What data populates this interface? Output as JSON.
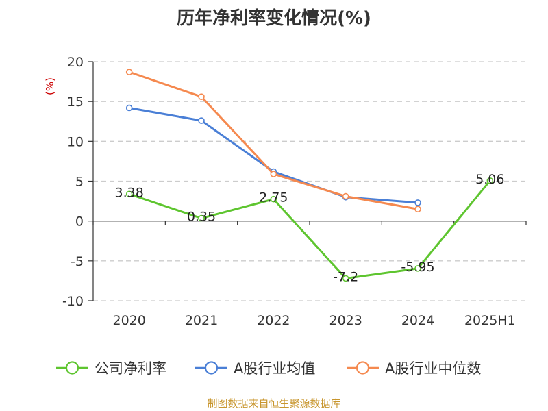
{
  "chart_data": {
    "type": "line",
    "title": "历年净利率变化情况(%)",
    "ylabel": "(%)",
    "xlabel": "",
    "categories": [
      "2020",
      "2021",
      "2022",
      "2023",
      "2024",
      "2025H1"
    ],
    "ylim": [
      -10,
      20
    ],
    "yticks": [
      -10,
      -5,
      0,
      5,
      10,
      15,
      20
    ],
    "grid": true,
    "legend_position": "bottom",
    "series": [
      {
        "name": "公司净利率",
        "color": "#5ec52f",
        "values": [
          3.38,
          0.35,
          2.75,
          -7.2,
          -5.95,
          5.06
        ],
        "labels": [
          "3.38",
          "0.35",
          "2.75",
          "-7.2",
          "-5.95",
          "5.06"
        ]
      },
      {
        "name": "A股行业均值",
        "color": "#4a7fd6",
        "values": [
          14.2,
          12.6,
          6.2,
          3.0,
          2.3,
          null
        ]
      },
      {
        "name": "A股行业中位数",
        "color": "#f5894f",
        "values": [
          18.7,
          15.6,
          5.9,
          3.1,
          1.5,
          null
        ]
      }
    ]
  },
  "source": "制图数据来自恒生聚源数据库",
  "colors": {
    "ylabel": "#cc0000",
    "source": "#c8962e",
    "axis": "#333333",
    "grid": "#cccccc"
  }
}
